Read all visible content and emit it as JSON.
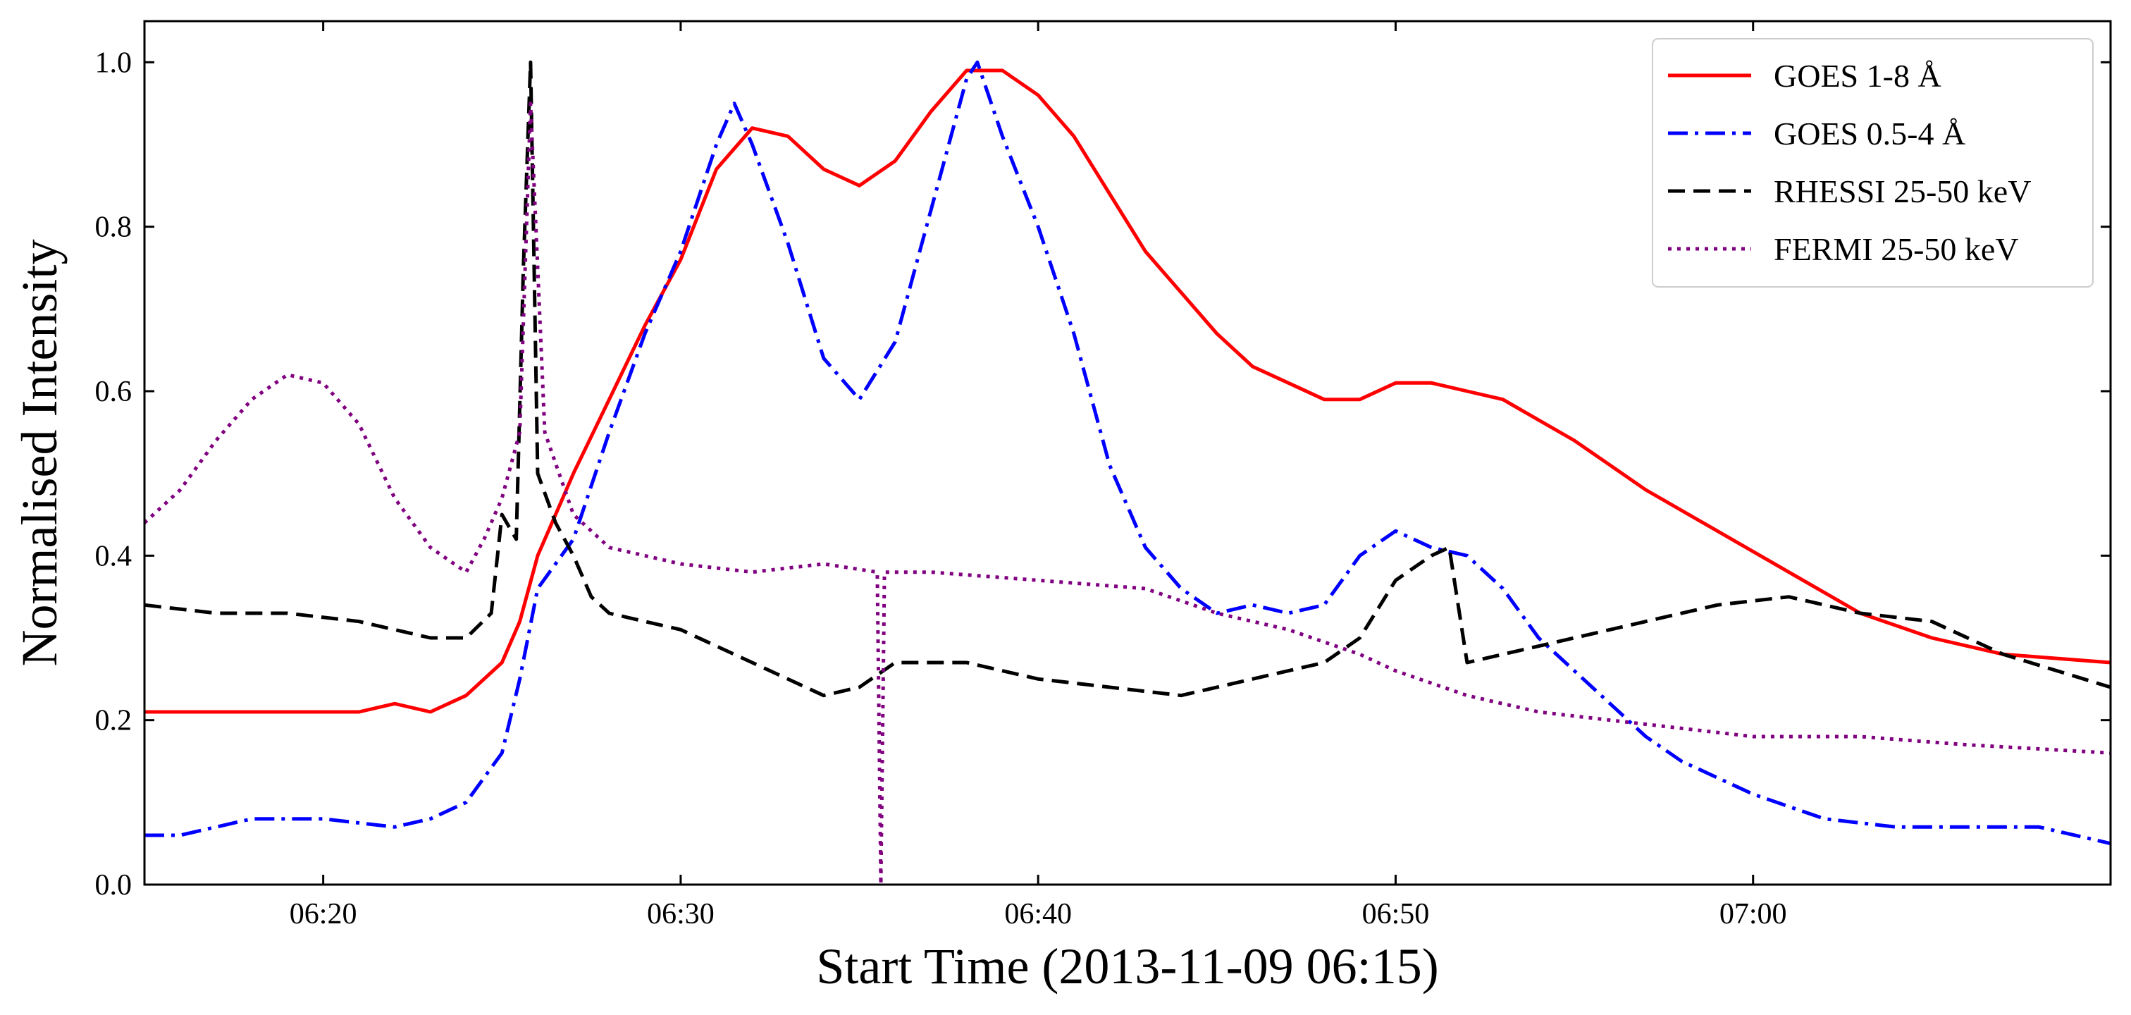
{
  "chart_data": {
    "type": "line",
    "title": "",
    "xlabel": "Start Time (2013-11-09 06:15)",
    "ylabel": "Normalised Intensity",
    "x_unit": "time (HH:MM)",
    "xlim": [
      "06:15",
      "07:10"
    ],
    "ylim": [
      0.0,
      1.05
    ],
    "x_ticks": [
      "06:20",
      "06:30",
      "06:40",
      "06:50",
      "07:00"
    ],
    "y_ticks": [
      "0.0",
      "0.2",
      "0.4",
      "0.6",
      "0.8",
      "1.0"
    ],
    "grid": false,
    "legend_position": "top-right",
    "series": [
      {
        "name": "GOES 1-8 Å",
        "color": "#ff0000",
        "style": "solid",
        "points": [
          [
            "06:15",
            0.21
          ],
          [
            "06:17",
            0.21
          ],
          [
            "06:19",
            0.21
          ],
          [
            "06:20",
            0.21
          ],
          [
            "06:21",
            0.21
          ],
          [
            "06:22",
            0.22
          ],
          [
            "06:23",
            0.21
          ],
          [
            "06:24",
            0.23
          ],
          [
            "06:25",
            0.27
          ],
          [
            "06:25.5",
            0.32
          ],
          [
            "06:26",
            0.4
          ],
          [
            "06:26.5",
            0.45
          ],
          [
            "06:27",
            0.5
          ],
          [
            "06:28",
            0.59
          ],
          [
            "06:29",
            0.68
          ],
          [
            "06:30",
            0.76
          ],
          [
            "06:31",
            0.87
          ],
          [
            "06:32",
            0.92
          ],
          [
            "06:33",
            0.91
          ],
          [
            "06:34",
            0.87
          ],
          [
            "06:35",
            0.85
          ],
          [
            "06:36",
            0.88
          ],
          [
            "06:37",
            0.94
          ],
          [
            "06:38",
            0.99
          ],
          [
            "06:39",
            0.99
          ],
          [
            "06:40",
            0.96
          ],
          [
            "06:41",
            0.91
          ],
          [
            "06:42",
            0.84
          ],
          [
            "06:43",
            0.77
          ],
          [
            "06:44",
            0.72
          ],
          [
            "06:45",
            0.67
          ],
          [
            "06:46",
            0.63
          ],
          [
            "06:47",
            0.61
          ],
          [
            "06:48",
            0.59
          ],
          [
            "06:49",
            0.59
          ],
          [
            "06:50",
            0.61
          ],
          [
            "06:51",
            0.61
          ],
          [
            "06:52",
            0.6
          ],
          [
            "06:53",
            0.59
          ],
          [
            "06:55",
            0.54
          ],
          [
            "06:57",
            0.48
          ],
          [
            "06:59",
            0.43
          ],
          [
            "07:01",
            0.38
          ],
          [
            "07:03",
            0.33
          ],
          [
            "07:05",
            0.3
          ],
          [
            "07:07",
            0.28
          ],
          [
            "07:10",
            0.27
          ]
        ]
      },
      {
        "name": "GOES 0.5-4 Å",
        "color": "#0000ff",
        "style": "dashdot",
        "points": [
          [
            "06:15",
            0.06
          ],
          [
            "06:16",
            0.06
          ],
          [
            "06:18",
            0.08
          ],
          [
            "06:20",
            0.08
          ],
          [
            "06:22",
            0.07
          ],
          [
            "06:23",
            0.08
          ],
          [
            "06:24",
            0.1
          ],
          [
            "06:25",
            0.16
          ],
          [
            "06:25.5",
            0.25
          ],
          [
            "06:26",
            0.36
          ],
          [
            "06:27",
            0.42
          ],
          [
            "06:28",
            0.55
          ],
          [
            "06:29",
            0.67
          ],
          [
            "06:30",
            0.77
          ],
          [
            "06:31",
            0.9
          ],
          [
            "06:31.5",
            0.95
          ],
          [
            "06:32",
            0.9
          ],
          [
            "06:33",
            0.78
          ],
          [
            "06:34",
            0.64
          ],
          [
            "06:35",
            0.59
          ],
          [
            "06:36",
            0.66
          ],
          [
            "06:37",
            0.82
          ],
          [
            "06:38",
            0.98
          ],
          [
            "06:38.3",
            1.0
          ],
          [
            "06:39",
            0.91
          ],
          [
            "06:40",
            0.8
          ],
          [
            "06:41",
            0.67
          ],
          [
            "06:42",
            0.51
          ],
          [
            "06:43",
            0.41
          ],
          [
            "06:44",
            0.36
          ],
          [
            "06:45",
            0.33
          ],
          [
            "06:46",
            0.34
          ],
          [
            "06:47",
            0.33
          ],
          [
            "06:48",
            0.34
          ],
          [
            "06:49",
            0.4
          ],
          [
            "06:50",
            0.43
          ],
          [
            "06:51",
            0.41
          ],
          [
            "06:52",
            0.4
          ],
          [
            "06:53",
            0.36
          ],
          [
            "06:54",
            0.3
          ],
          [
            "06:55",
            0.26
          ],
          [
            "06:56",
            0.22
          ],
          [
            "06:57",
            0.18
          ],
          [
            "06:58",
            0.15
          ],
          [
            "07:00",
            0.11
          ],
          [
            "07:02",
            0.08
          ],
          [
            "07:04",
            0.07
          ],
          [
            "07:06",
            0.07
          ],
          [
            "07:08",
            0.07
          ],
          [
            "07:10",
            0.05
          ]
        ]
      },
      {
        "name": "RHESSI 25-50 keV",
        "color": "#000000",
        "style": "dashed",
        "points": [
          [
            "06:15",
            0.34
          ],
          [
            "06:17",
            0.33
          ],
          [
            "06:19",
            0.33
          ],
          [
            "06:21",
            0.32
          ],
          [
            "06:23",
            0.3
          ],
          [
            "06:24",
            0.3
          ],
          [
            "06:24.7",
            0.33
          ],
          [
            "06:25",
            0.45
          ],
          [
            "06:25.4",
            0.42
          ],
          [
            "06:25.6",
            0.75
          ],
          [
            "06:25.8",
            1.0
          ],
          [
            "06:26",
            0.5
          ],
          [
            "06:26.5",
            0.44
          ],
          [
            "06:27",
            0.4
          ],
          [
            "06:27.5",
            0.35
          ],
          [
            "06:28",
            0.33
          ],
          [
            "06:30",
            0.31
          ],
          [
            "06:32",
            0.27
          ],
          [
            "06:34",
            0.23
          ],
          [
            "06:35",
            0.24
          ],
          [
            "06:36",
            0.27
          ],
          [
            "06:38",
            0.27
          ],
          [
            "06:40",
            0.25
          ],
          [
            "06:42",
            0.24
          ],
          [
            "06:44",
            0.23
          ],
          [
            "06:46",
            0.25
          ],
          [
            "06:48",
            0.27
          ],
          [
            "06:49",
            0.3
          ],
          [
            "06:50",
            0.37
          ],
          [
            "06:51",
            0.4
          ],
          [
            "06:51.5",
            0.41
          ],
          [
            "06:52",
            0.27
          ],
          [
            "06:53",
            0.28
          ],
          [
            "06:55",
            0.3
          ],
          [
            "06:57",
            0.32
          ],
          [
            "06:59",
            0.34
          ],
          [
            "07:01",
            0.35
          ],
          [
            "07:03",
            0.33
          ],
          [
            "07:05",
            0.32
          ],
          [
            "07:07",
            0.28
          ],
          [
            "07:10",
            0.24
          ]
        ]
      },
      {
        "name": "FERMI 25-50 keV",
        "color": "#800080",
        "style": "dotted",
        "points": [
          [
            "06:15",
            0.44
          ],
          [
            "06:16",
            0.48
          ],
          [
            "06:17",
            0.54
          ],
          [
            "06:18",
            0.59
          ],
          [
            "06:19",
            0.62
          ],
          [
            "06:20",
            0.61
          ],
          [
            "06:21",
            0.56
          ],
          [
            "06:22",
            0.47
          ],
          [
            "06:23",
            0.41
          ],
          [
            "06:24",
            0.38
          ],
          [
            "06:24.5",
            0.42
          ],
          [
            "06:25",
            0.47
          ],
          [
            "06:25.5",
            0.55
          ],
          [
            "06:25.8",
            0.95
          ],
          [
            "06:26.2",
            0.55
          ],
          [
            "06:27",
            0.45
          ],
          [
            "06:28",
            0.41
          ],
          [
            "06:30",
            0.39
          ],
          [
            "06:32",
            0.38
          ],
          [
            "06:34",
            0.39
          ],
          [
            "06:35.5",
            0.38
          ],
          [
            "06:35.6",
            0.0
          ],
          [
            "06:35.7",
            0.38
          ],
          [
            "06:37",
            0.38
          ],
          [
            "06:40",
            0.37
          ],
          [
            "06:43",
            0.36
          ],
          [
            "06:45",
            0.33
          ],
          [
            "06:47",
            0.31
          ],
          [
            "06:49",
            0.28
          ],
          [
            "06:50",
            0.26
          ],
          [
            "06:52",
            0.23
          ],
          [
            "06:54",
            0.21
          ],
          [
            "06:56",
            0.2
          ],
          [
            "06:58",
            0.19
          ],
          [
            "07:00",
            0.18
          ],
          [
            "07:03",
            0.18
          ],
          [
            "07:06",
            0.17
          ],
          [
            "07:10",
            0.16
          ]
        ]
      }
    ]
  }
}
